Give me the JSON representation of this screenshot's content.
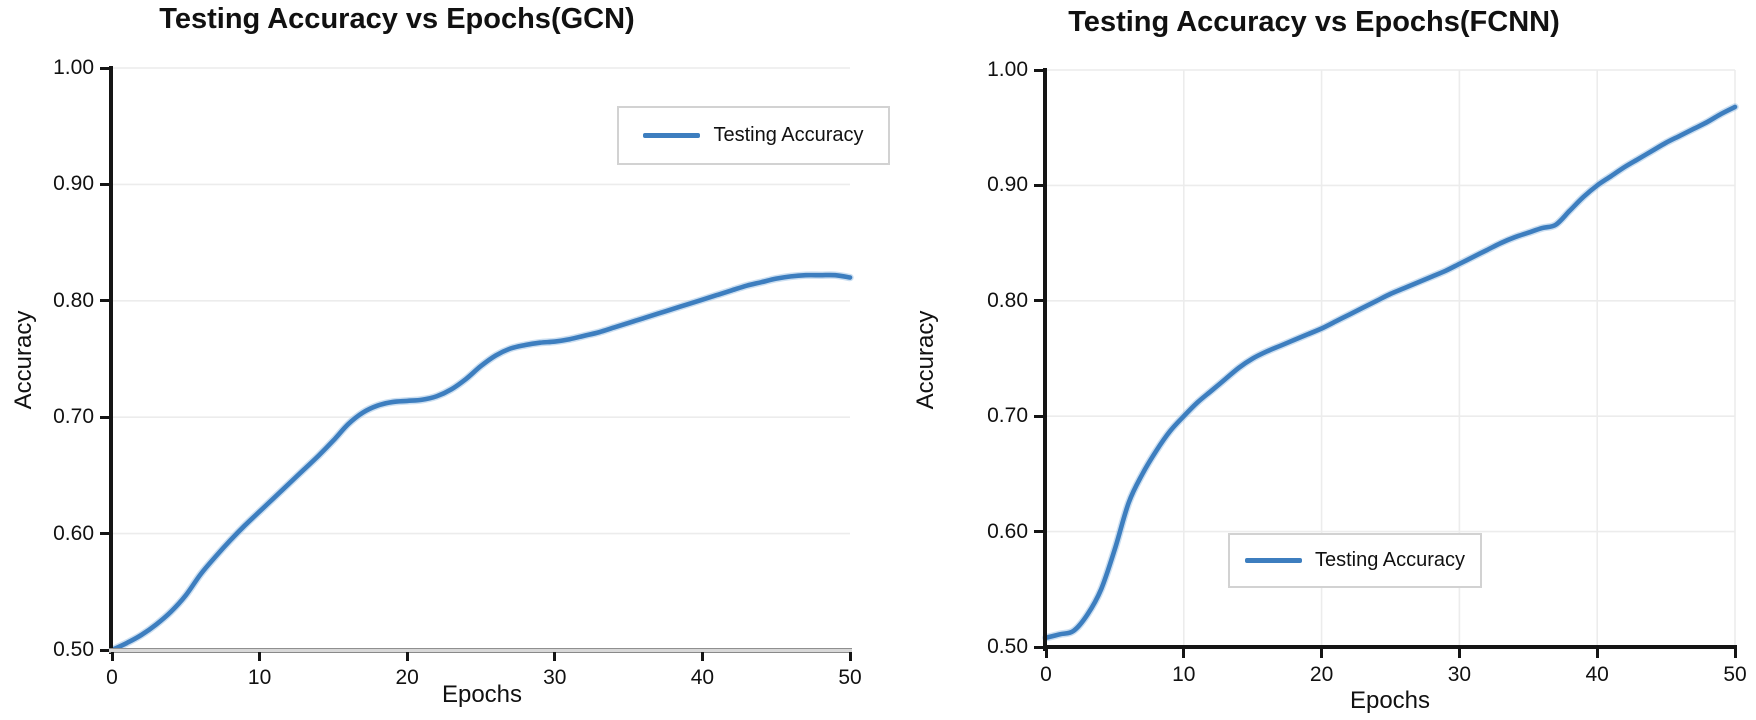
{
  "page": {
    "background": "#ffffff",
    "accent_line_color": "#3d7ebf"
  },
  "chart_data": [
    {
      "id": "gcn",
      "type": "line",
      "title": "Testing Accuracy vs Epochs(GCN)",
      "xlabel": "Epochs",
      "ylabel": "Accuracy",
      "xlim": [
        0,
        50
      ],
      "ylim": [
        0.5,
        1.0
      ],
      "x_ticks": [
        0,
        10,
        20,
        30,
        40,
        50
      ],
      "y_ticks": [
        0.5,
        0.6,
        0.7,
        0.8,
        0.9,
        1.0
      ],
      "grid": "horizontal",
      "line_color": "#3d7ebf",
      "legend": {
        "label": "Testing Accuracy",
        "position": "upper right"
      },
      "series": [
        {
          "name": "Testing Accuracy",
          "x": [
            0,
            1,
            2,
            3,
            4,
            5,
            6,
            7,
            8,
            9,
            10,
            11,
            12,
            13,
            14,
            15,
            16,
            17,
            18,
            19,
            20,
            21,
            22,
            23,
            24,
            25,
            26,
            27,
            28,
            29,
            30,
            31,
            32,
            33,
            34,
            35,
            36,
            37,
            38,
            39,
            40,
            41,
            42,
            43,
            44,
            45,
            46,
            47,
            48,
            49,
            50
          ],
          "y": [
            0.5,
            0.506,
            0.513,
            0.522,
            0.533,
            0.547,
            0.565,
            0.58,
            0.594,
            0.607,
            0.619,
            0.631,
            0.643,
            0.655,
            0.667,
            0.68,
            0.694,
            0.704,
            0.71,
            0.713,
            0.714,
            0.715,
            0.718,
            0.724,
            0.733,
            0.744,
            0.753,
            0.759,
            0.762,
            0.764,
            0.765,
            0.767,
            0.77,
            0.773,
            0.777,
            0.781,
            0.785,
            0.789,
            0.793,
            0.797,
            0.801,
            0.805,
            0.809,
            0.813,
            0.816,
            0.819,
            0.821,
            0.822,
            0.822,
            0.822,
            0.82
          ]
        }
      ]
    },
    {
      "id": "fcnn",
      "type": "line",
      "title": "Testing Accuracy vs Epochs(FCNN)",
      "xlabel": "Epochs",
      "ylabel": "Accuracy",
      "xlim": [
        0,
        50
      ],
      "ylim": [
        0.5,
        1.0
      ],
      "x_ticks": [
        0,
        10,
        20,
        30,
        40,
        50
      ],
      "y_ticks": [
        0.5,
        0.6,
        0.7,
        0.8,
        0.9,
        1.0
      ],
      "grid": "both",
      "line_color": "#3d7ebf",
      "legend": {
        "label": "Testing Accuracy",
        "position": "lower center"
      },
      "series": [
        {
          "name": "Testing Accuracy",
          "x": [
            0,
            1,
            2,
            3,
            4,
            5,
            6,
            7,
            8,
            9,
            10,
            11,
            12,
            13,
            14,
            15,
            16,
            17,
            18,
            19,
            20,
            21,
            22,
            23,
            24,
            25,
            26,
            27,
            28,
            29,
            30,
            31,
            32,
            33,
            34,
            35,
            36,
            37,
            38,
            39,
            40,
            41,
            42,
            43,
            44,
            45,
            46,
            47,
            48,
            49,
            50
          ],
          "y": [
            0.508,
            0.511,
            0.514,
            0.528,
            0.55,
            0.585,
            0.625,
            0.65,
            0.67,
            0.687,
            0.7,
            0.712,
            0.722,
            0.732,
            0.742,
            0.75,
            0.756,
            0.761,
            0.766,
            0.771,
            0.776,
            0.782,
            0.788,
            0.794,
            0.8,
            0.806,
            0.811,
            0.816,
            0.821,
            0.826,
            0.832,
            0.838,
            0.844,
            0.85,
            0.855,
            0.859,
            0.863,
            0.866,
            0.878,
            0.89,
            0.9,
            0.908,
            0.916,
            0.923,
            0.93,
            0.937,
            0.943,
            0.949,
            0.955,
            0.962,
            0.968
          ]
        }
      ]
    }
  ]
}
